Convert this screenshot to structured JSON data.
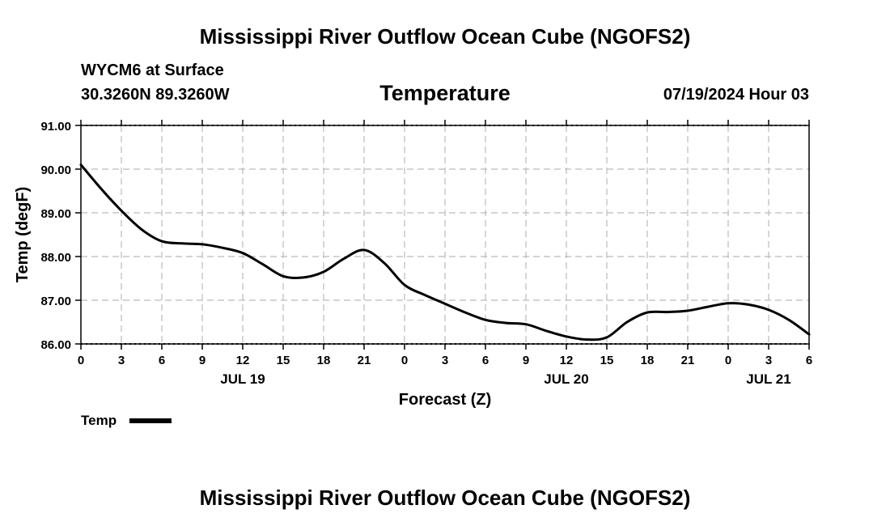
{
  "header": {
    "main_title": "Mississippi River Outflow Ocean Cube (NGOFS2)",
    "station": "WYCM6 at Surface",
    "coords": "30.3260N  89.3260W",
    "panel_title": "Temperature",
    "date_label": "07/19/2024 Hour 03"
  },
  "footer": {
    "main_title": "Mississippi River Outflow Ocean Cube (NGOFS2)"
  },
  "legend": {
    "label": "Temp"
  },
  "colors": {
    "line": "#000000",
    "grid": "#bbbbbb"
  },
  "chart_data": {
    "type": "line",
    "title": "Temperature",
    "xlabel": "Forecast (Z)",
    "ylabel": "Temp (degF)",
    "ylim": [
      86.0,
      91.0
    ],
    "xlim": [
      0,
      54
    ],
    "grid": true,
    "legend_position": "bottom-left",
    "y_ticks": [
      "86.00",
      "87.00",
      "88.00",
      "89.00",
      "90.00",
      "91.00"
    ],
    "x_tick_labels": [
      "0",
      "3",
      "6",
      "9",
      "12",
      "15",
      "18",
      "21",
      "0",
      "3",
      "6",
      "9",
      "12",
      "15",
      "18",
      "21",
      "0",
      "3",
      "6"
    ],
    "day_labels": [
      {
        "label": "JUL 19",
        "hour": 12
      },
      {
        "label": "JUL 20",
        "hour": 36
      },
      {
        "label": "JUL 21",
        "hour": 51
      }
    ],
    "series": [
      {
        "name": "Temp",
        "x": [
          0,
          1.5,
          3,
          4.5,
          6,
          7.5,
          9,
          10.5,
          12,
          13.5,
          15,
          16.5,
          18,
          19.5,
          21,
          22.5,
          24,
          25.5,
          27,
          28.5,
          30,
          31.5,
          33,
          34.5,
          36,
          37.5,
          39,
          40.5,
          42,
          43.5,
          45,
          46.5,
          48,
          49.5,
          51,
          52.5,
          54
        ],
        "values": [
          90.1,
          89.55,
          89.05,
          88.62,
          88.35,
          88.3,
          88.28,
          88.2,
          88.08,
          87.82,
          87.55,
          87.52,
          87.65,
          87.95,
          88.15,
          87.85,
          87.35,
          87.12,
          86.92,
          86.72,
          86.55,
          86.48,
          86.45,
          86.3,
          86.17,
          86.1,
          86.15,
          86.5,
          86.72,
          86.73,
          86.76,
          86.85,
          86.93,
          86.9,
          86.78,
          86.55,
          86.22
        ]
      }
    ]
  }
}
